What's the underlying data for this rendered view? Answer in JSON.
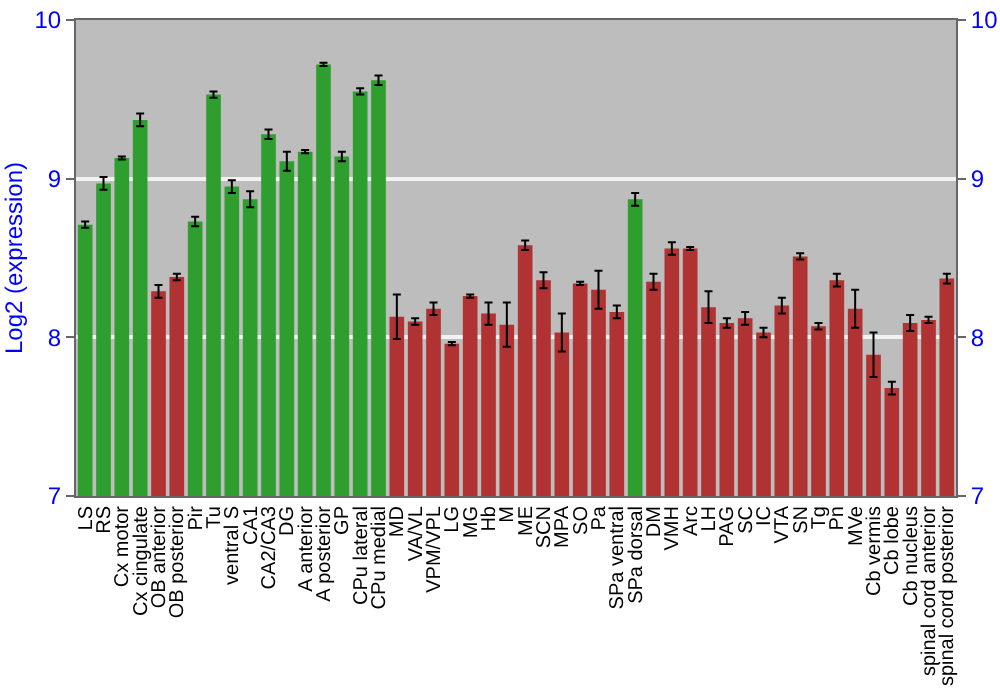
{
  "chart_data": {
    "type": "bar",
    "ylabel": "Log2 (expression)",
    "categories": [
      "LS",
      "RS",
      "Cx motor",
      "Cx cingulate",
      "OB anterior",
      "OB posterior",
      "Pir",
      "Tu",
      "ventral S",
      "CA1",
      "CA2/CA3",
      "DG",
      "A anterior",
      "A posterior",
      "GP",
      "CPu lateral",
      "CPu medial",
      "MD",
      "VA/VL",
      "VPM/VPL",
      "LG",
      "MG",
      "Hb",
      "M",
      "ME",
      "SCN",
      "MPA",
      "SO",
      "Pa",
      "SPa ventral",
      "SPa dorsal",
      "DM",
      "VMH",
      "Arc",
      "LH",
      "PAG",
      "SC",
      "IC",
      "VTA",
      "SN",
      "Tg",
      "Pn",
      "MVe",
      "Cb vermis",
      "Cb lobe",
      "Cb nucleus",
      "spinal cord anterior",
      "spinal cord posterior"
    ],
    "values": [
      8.71,
      8.97,
      9.13,
      9.37,
      8.29,
      8.38,
      8.73,
      9.53,
      8.95,
      8.87,
      9.28,
      9.11,
      9.17,
      9.72,
      9.14,
      9.55,
      9.62,
      8.13,
      8.1,
      8.18,
      7.96,
      8.26,
      8.15,
      8.08,
      8.58,
      8.36,
      8.03,
      8.34,
      8.3,
      8.16,
      8.87,
      8.35,
      8.56,
      8.56,
      8.19,
      8.09,
      8.12,
      8.03,
      8.2,
      8.51,
      8.07,
      8.36,
      8.18,
      7.89,
      7.68,
      8.09,
      8.11,
      8.37
    ],
    "errors": [
      0.02,
      0.04,
      0.01,
      0.04,
      0.04,
      0.02,
      0.03,
      0.02,
      0.04,
      0.05,
      0.03,
      0.06,
      0.01,
      0.01,
      0.03,
      0.02,
      0.03,
      0.14,
      0.02,
      0.04,
      0.01,
      0.01,
      0.07,
      0.14,
      0.03,
      0.05,
      0.12,
      0.01,
      0.12,
      0.04,
      0.04,
      0.05,
      0.04,
      0.01,
      0.1,
      0.03,
      0.04,
      0.03,
      0.05,
      0.02,
      0.02,
      0.04,
      0.12,
      0.14,
      0.04,
      0.05,
      0.02,
      0.03
    ],
    "colors": [
      "#2e9e2e",
      "#2e9e2e",
      "#2e9e2e",
      "#2e9e2e",
      "#b03232",
      "#b03232",
      "#2e9e2e",
      "#2e9e2e",
      "#2e9e2e",
      "#2e9e2e",
      "#2e9e2e",
      "#2e9e2e",
      "#2e9e2e",
      "#2e9e2e",
      "#2e9e2e",
      "#2e9e2e",
      "#2e9e2e",
      "#b03232",
      "#b03232",
      "#b03232",
      "#b03232",
      "#b03232",
      "#b03232",
      "#b03232",
      "#b03232",
      "#b03232",
      "#b03232",
      "#b03232",
      "#b03232",
      "#b03232",
      "#2e9e2e",
      "#b03232",
      "#b03232",
      "#b03232",
      "#b03232",
      "#b03232",
      "#b03232",
      "#b03232",
      "#b03232",
      "#b03232",
      "#b03232",
      "#b03232",
      "#b03232",
      "#b03232",
      "#b03232",
      "#b03232",
      "#b03232",
      "#b03232"
    ],
    "ylim": [
      7,
      10
    ],
    "yticks": [
      7,
      8,
      9,
      10
    ],
    "y2lim": [
      7,
      10
    ],
    "y2ticks": [
      7,
      8,
      9,
      10
    ],
    "grid": "y"
  }
}
